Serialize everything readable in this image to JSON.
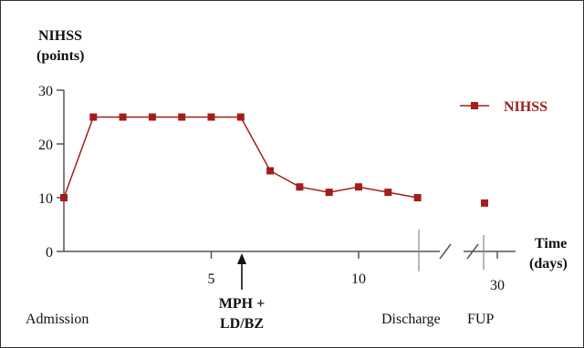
{
  "chart_data": {
    "type": "line",
    "ylabel_line1": "NIHSS",
    "ylabel_line2": "(points)",
    "xlabel_line1": "Time",
    "xlabel_line2": "(days)",
    "y_ticks": [
      0,
      10,
      20,
      30
    ],
    "ylim": [
      0,
      30
    ],
    "x_ticks": [
      5,
      10
    ],
    "x_tick_after_break": 30,
    "axis_break": true,
    "series": [
      {
        "name": "NIHSS",
        "color": "#a31d1d",
        "marker": "square",
        "points": [
          {
            "x": 0,
            "y": 10
          },
          {
            "x": 1,
            "y": 25
          },
          {
            "x": 2,
            "y": 25
          },
          {
            "x": 3,
            "y": 25
          },
          {
            "x": 4,
            "y": 25
          },
          {
            "x": 5,
            "y": 25
          },
          {
            "x": 6,
            "y": 25
          },
          {
            "x": 7,
            "y": 15
          },
          {
            "x": 8,
            "y": 12
          },
          {
            "x": 9,
            "y": 11
          },
          {
            "x": 10,
            "y": 12
          },
          {
            "x": 11,
            "y": 11
          },
          {
            "x": 12,
            "y": 10
          }
        ],
        "followup_point": {
          "x": 30,
          "y": 9
        }
      }
    ],
    "legend_position": "top-right",
    "annotations": {
      "admission": "Admission",
      "treatment_line1": "MPH +",
      "treatment_line2": "LD/BZ",
      "discharge": "Discharge",
      "fup": "FUP"
    }
  }
}
